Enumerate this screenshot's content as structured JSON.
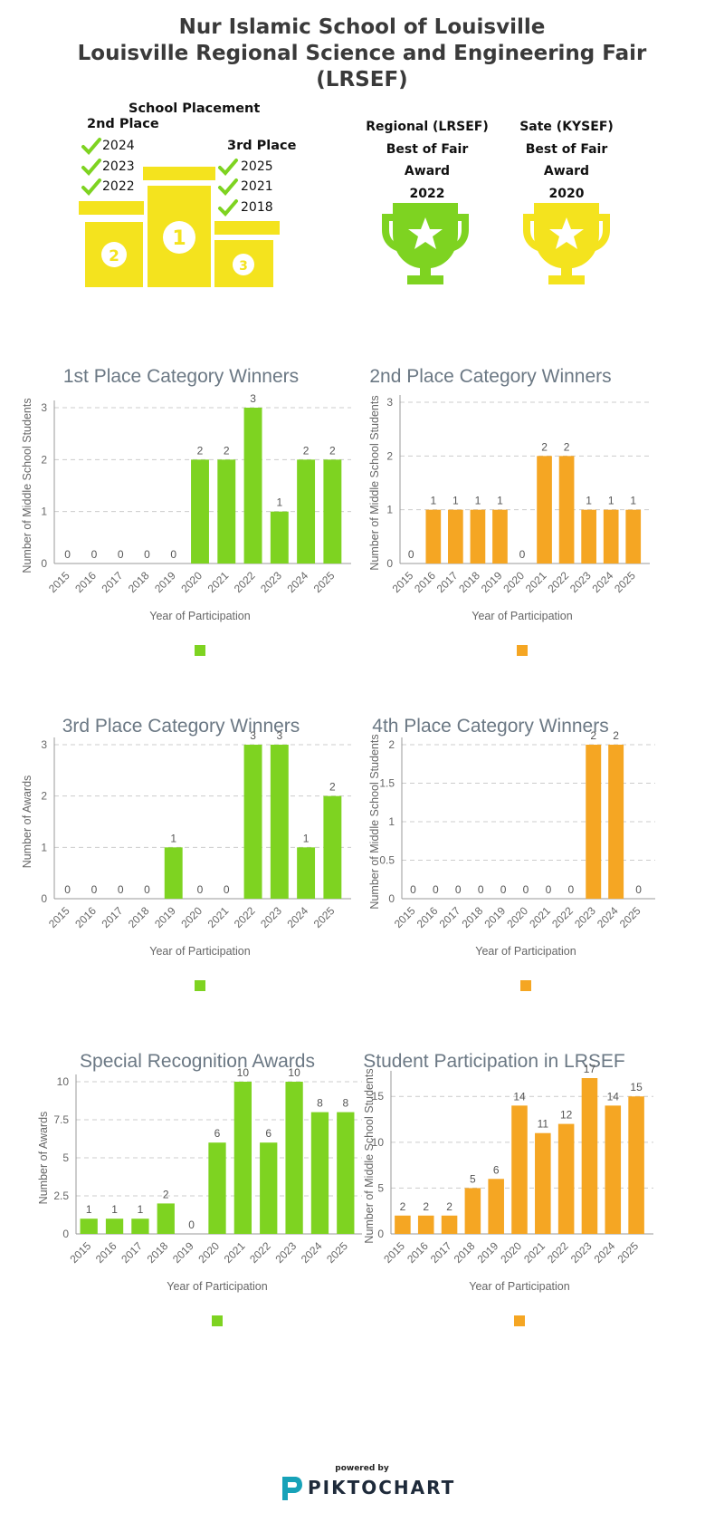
{
  "header": {
    "line1": "Nur Islamic School of Louisville",
    "line2": "Louisville Regional Science and Engineering Fair",
    "line3": "(LRSEF)"
  },
  "placement": {
    "title": "School Placement",
    "second": {
      "label": "2nd Place",
      "years": [
        "2024",
        "2023",
        "2022"
      ]
    },
    "third": {
      "label": "3rd Place",
      "years": [
        "2025",
        "2021",
        "2018"
      ]
    },
    "podium_color": "#f4e31e"
  },
  "awards": [
    {
      "lines": [
        "Regional (LRSEF)",
        "Best of Fair",
        "Award",
        "2022"
      ],
      "color": "#7ed321"
    },
    {
      "lines": [
        "Sate (KYSEF)",
        "Best of Fair",
        "Award",
        "2020"
      ],
      "color": "#f4e31e"
    }
  ],
  "colors": {
    "green": "#7ed321",
    "orange": "#f5a623",
    "title": "#6b7884"
  },
  "chart_data": [
    {
      "type": "bar",
      "title": "1st Place Category Winners",
      "xlabel": "Year of Participation",
      "ylabel": "Number of Middle School Students",
      "categories": [
        "2015",
        "2016",
        "2017",
        "2018",
        "2019",
        "2020",
        "2021",
        "2022",
        "2023",
        "2024",
        "2025"
      ],
      "values": [
        0,
        0,
        0,
        0,
        0,
        2,
        2,
        3,
        1,
        2,
        2
      ],
      "ylim": [
        0,
        3
      ],
      "yticks": [
        "0",
        "1",
        "2",
        "3"
      ],
      "color": "#7ed321",
      "grid": true
    },
    {
      "type": "bar",
      "title": "2nd Place Category Winners",
      "xlabel": "Year of Participation",
      "ylabel": "Number of Middle School Students",
      "categories": [
        "2015",
        "2016",
        "2017",
        "2018",
        "2019",
        "2020",
        "2021",
        "2022",
        "2023",
        "2024",
        "2025"
      ],
      "values": [
        0,
        1,
        1,
        1,
        1,
        0,
        2,
        2,
        1,
        1,
        1
      ],
      "ylim": [
        0,
        3
      ],
      "yticks": [
        "0",
        "1",
        "2",
        "3"
      ],
      "color": "#f5a623",
      "grid": true
    },
    {
      "type": "bar",
      "title": "3rd Place Category Winners",
      "xlabel": "Year of Participation",
      "ylabel": "Number of Awards",
      "categories": [
        "2015",
        "2016",
        "2017",
        "2018",
        "2019",
        "2020",
        "2021",
        "2022",
        "2023",
        "2024",
        "2025"
      ],
      "values": [
        0,
        0,
        0,
        0,
        1,
        0,
        0,
        3,
        3,
        1,
        2
      ],
      "ylim": [
        0,
        3
      ],
      "yticks": [
        "0",
        "1",
        "2",
        "3"
      ],
      "color": "#7ed321",
      "grid": true
    },
    {
      "type": "bar",
      "title": "4th Place Category Winners",
      "xlabel": "Year of Participation",
      "ylabel": "Number of Middle School Students",
      "categories": [
        "2015",
        "2016",
        "2017",
        "2018",
        "2019",
        "2020",
        "2021",
        "2022",
        "2023",
        "2024",
        "2025"
      ],
      "values": [
        0,
        0,
        0,
        0,
        0,
        0,
        0,
        0,
        2,
        2,
        0
      ],
      "ylim": [
        0,
        2
      ],
      "yticks": [
        "0",
        "0.5",
        "1",
        "1.5",
        "2"
      ],
      "color": "#f5a623",
      "grid": true
    },
    {
      "type": "bar",
      "title": "Special Recognition Awards",
      "xlabel": "Year of Participation",
      "ylabel": "Number of Awards",
      "categories": [
        "2015",
        "2016",
        "2017",
        "2018",
        "2019",
        "2020",
        "2021",
        "2022",
        "2023",
        "2024",
        "2025"
      ],
      "values": [
        1,
        1,
        1,
        2,
        0,
        6,
        10,
        6,
        10,
        8,
        8
      ],
      "ylim": [
        0,
        10
      ],
      "yticks": [
        "0",
        "2.5",
        "5",
        "7.5",
        "10"
      ],
      "color": "#7ed321",
      "grid": true
    },
    {
      "type": "bar",
      "title": "Student Participation in LRSEF",
      "xlabel": "Year of Participation",
      "ylabel": "Number of Middle School Students",
      "categories": [
        "2015",
        "2016",
        "2017",
        "2018",
        "2019",
        "2020",
        "2021",
        "2022",
        "2023",
        "2024",
        "2025"
      ],
      "values": [
        2,
        2,
        2,
        5,
        6,
        14,
        11,
        12,
        17,
        14,
        15
      ],
      "ylim": [
        0,
        17
      ],
      "yticks": [
        "0",
        "5",
        "10",
        "15"
      ],
      "color": "#f5a623",
      "grid": true
    }
  ],
  "footer": {
    "powered_by": "powered by",
    "brand": "PIKTOCHART"
  }
}
